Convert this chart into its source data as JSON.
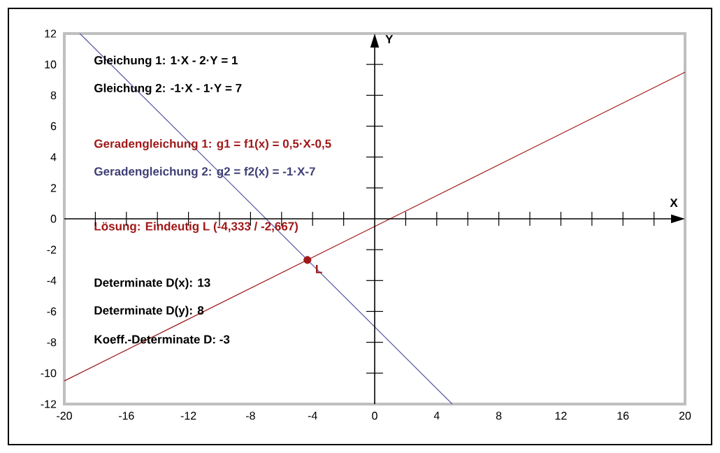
{
  "chart_data": {
    "type": "line",
    "xlabel": "X",
    "ylabel": "Y",
    "series": [
      {
        "color": "#a01818",
        "x": [
          -20,
          20
        ],
        "values": [
          -10.5,
          9.5
        ]
      },
      {
        "color": "#5a5aa8",
        "x": [
          -19,
          5
        ],
        "values": [
          12,
          -12
        ]
      },
      {
        "type": "scatter",
        "color": "#a01818",
        "x": [
          -4.333
        ],
        "values": [
          -2.667
        ]
      }
    ],
    "xlim": [
      -20,
      20
    ],
    "ylim": [
      -12,
      12
    ],
    "xticks": [
      -20,
      -16,
      -12,
      -8,
      -4,
      0,
      4,
      8,
      12,
      16,
      20
    ],
    "yticks": [
      -12,
      -10,
      -8,
      -6,
      -4,
      -2,
      0,
      2,
      4,
      6,
      8,
      10,
      12
    ],
    "line_style": "solid",
    "annotations": [
      "Gleichung 1: 1·X - 2·Y = 1",
      "Gleichung 2: -1·X - 1·Y = 7",
      "Geradengleichung 1: g1 = f1(x) = 0,5·X-0,5",
      "Geradengleichung 2: g2 = f2(x) = -1·X-7",
      "Lösung: Eindeutig L (-4,333 / -2,667)",
      {
        "text": "L",
        "x": -4.333,
        "y": -2.667
      },
      "Determinate D(x): 13",
      "Determinate D(y): 8",
      "Koeff.-Determinate D: -3"
    ]
  }
}
